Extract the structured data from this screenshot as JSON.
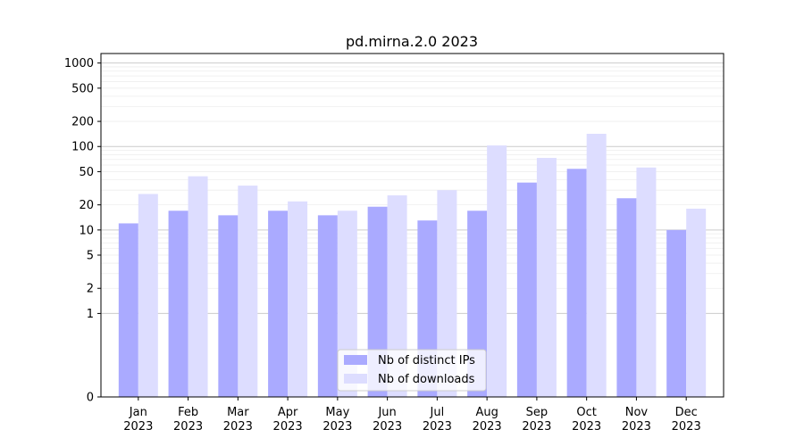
{
  "chart_data": {
    "type": "bar",
    "title": "pd.mirna.2.0 2023",
    "xlabel": "",
    "ylabel": "",
    "y_scale": "symlog",
    "ylim": [
      0,
      1300
    ],
    "y_ticks": [
      0,
      1,
      2,
      5,
      10,
      20,
      50,
      100,
      200,
      500,
      1000
    ],
    "grid": "horizontal",
    "legend_position": "bottom-center",
    "categories": [
      [
        "Jan",
        "2023"
      ],
      [
        "Feb",
        "2023"
      ],
      [
        "Mar",
        "2023"
      ],
      [
        "Apr",
        "2023"
      ],
      [
        "May",
        "2023"
      ],
      [
        "Jun",
        "2023"
      ],
      [
        "Jul",
        "2023"
      ],
      [
        "Aug",
        "2023"
      ],
      [
        "Sep",
        "2023"
      ],
      [
        "Oct",
        "2023"
      ],
      [
        "Nov",
        "2023"
      ],
      [
        "Dec",
        "2023"
      ]
    ],
    "series": [
      {
        "name": "Nb of distinct IPs",
        "color": "#aaaaff",
        "values": [
          12,
          17,
          15,
          17,
          15,
          19,
          13,
          17,
          37,
          54,
          24,
          10
        ]
      },
      {
        "name": "Nb of downloads",
        "color": "#ddddff",
        "values": [
          27,
          44,
          34,
          22,
          17,
          26,
          30,
          103,
          73,
          142,
          56,
          18
        ]
      }
    ]
  }
}
